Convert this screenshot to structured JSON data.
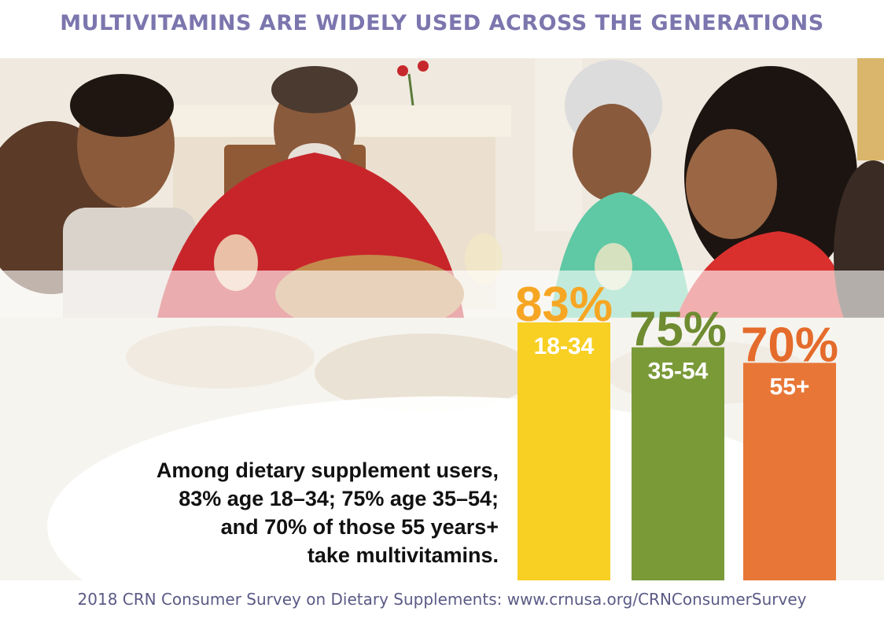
{
  "title": "MULTIVITAMINS ARE WIDELY USED ACROSS THE GENERATIONS",
  "statement_lines": [
    "Among dietary supplement users,",
    "83% age 18–34; 75% age 35–54;",
    "and 70% of those 55 years+",
    "take multivitamins."
  ],
  "footer": "2018 CRN Consumer Survey on Dietary Supplements: www.crnusa.org/CRNConsumerSurvey",
  "chart_data": {
    "type": "bar",
    "categories": [
      "18-34",
      "35-54",
      "55+"
    ],
    "values": [
      83,
      75,
      70
    ],
    "value_labels": [
      "83%",
      "75%",
      "70%"
    ],
    "colors": [
      "#f8cf23",
      "#7a9a38",
      "#e87737"
    ],
    "value_label_colors": [
      "#f6a623",
      "#6f8c31",
      "#e46b2b"
    ],
    "ylim": [
      0,
      83
    ],
    "grid": false,
    "legend": "none"
  }
}
